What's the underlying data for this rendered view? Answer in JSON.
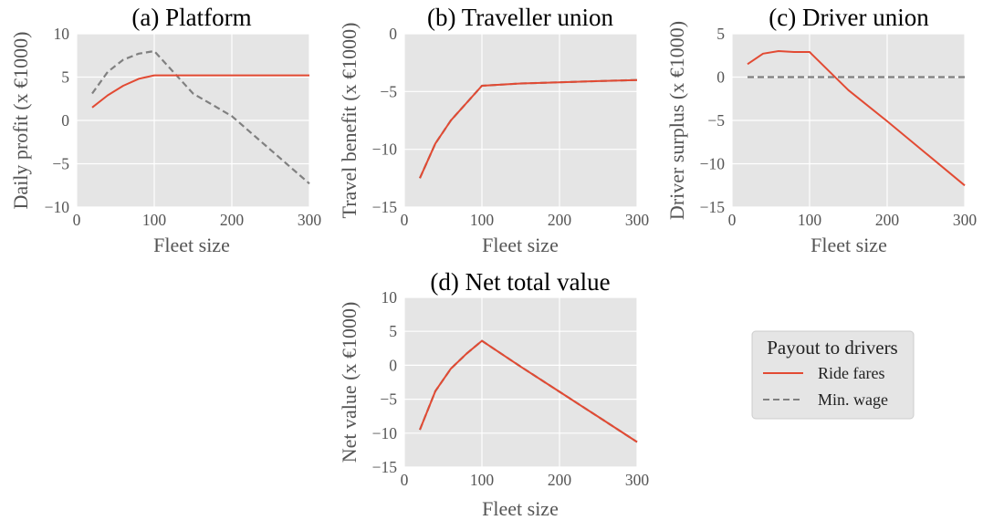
{
  "colors": {
    "ride_fares": "#E24A33",
    "min_wage": "#808080",
    "plot_bg": "#E5E5E5",
    "grid": "#FFFFFF",
    "legend_bg": "#E5E5E5"
  },
  "legend": {
    "title": "Payout to drivers",
    "entries": [
      "Ride fares",
      "Min. wage"
    ],
    "placement": "right of panel (d)"
  },
  "chart_data": [
    {
      "type": "line",
      "title": "(a) Platform",
      "xlabel": "Fleet size",
      "ylabel": "Daily profit (x €1000)",
      "xlim": [
        0,
        300
      ],
      "ylim": [
        -10,
        10
      ],
      "xticks": [
        0,
        100,
        200,
        300
      ],
      "yticks": [
        -10,
        -5,
        0,
        5,
        10
      ],
      "xtick_labels": [
        "0",
        "100",
        "200",
        "300"
      ],
      "ytick_labels": [
        "−10",
        "−5",
        "0",
        "5",
        "10"
      ],
      "grid": true,
      "series": [
        {
          "name": "Ride fares",
          "style": "solid",
          "x": [
            20,
            40,
            60,
            80,
            100,
            120,
            150,
            200,
            250,
            300
          ],
          "y": [
            1.5,
            2.9,
            4.0,
            4.8,
            5.2,
            5.2,
            5.2,
            5.2,
            5.2,
            5.2
          ]
        },
        {
          "name": "Min. wage",
          "style": "dashed",
          "x": [
            20,
            40,
            60,
            80,
            100,
            150,
            200,
            250,
            300
          ],
          "y": [
            3.1,
            5.6,
            7.0,
            7.7,
            8.0,
            3.1,
            0.5,
            -3.4,
            -7.3
          ]
        }
      ]
    },
    {
      "type": "line",
      "title": "(b) Traveller union",
      "xlabel": "Fleet size",
      "ylabel": "Travel benefit (x €1000)",
      "xlim": [
        0,
        300
      ],
      "ylim": [
        -15,
        0
      ],
      "xticks": [
        0,
        100,
        200,
        300
      ],
      "yticks": [
        -15,
        -10,
        -5,
        0
      ],
      "xtick_labels": [
        "0",
        "100",
        "200",
        "300"
      ],
      "ytick_labels": [
        "−15",
        "−10",
        "−5",
        "0"
      ],
      "grid": true,
      "series": [
        {
          "name": "Ride fares",
          "style": "solid",
          "x": [
            20,
            40,
            60,
            80,
            100,
            150,
            200,
            250,
            300
          ],
          "y": [
            -12.5,
            -9.5,
            -7.5,
            -6.0,
            -4.5,
            -4.3,
            -4.2,
            -4.1,
            -4.0
          ]
        },
        {
          "name": "Min. wage",
          "style": "dashed",
          "x": [
            20,
            40,
            60,
            80,
            100,
            150,
            200,
            250,
            300
          ],
          "y": [
            -12.5,
            -9.5,
            -7.5,
            -6.0,
            -4.5,
            -4.3,
            -4.2,
            -4.1,
            -4.0
          ]
        }
      ]
    },
    {
      "type": "line",
      "title": "(c) Driver union",
      "xlabel": "Fleet size",
      "ylabel": "Driver surplus (x €1000)",
      "xlim": [
        0,
        300
      ],
      "ylim": [
        -15,
        5
      ],
      "xticks": [
        0,
        100,
        200,
        300
      ],
      "yticks": [
        -15,
        -10,
        -5,
        0,
        5
      ],
      "xtick_labels": [
        "0",
        "100",
        "200",
        "300"
      ],
      "ytick_labels": [
        "−15",
        "−10",
        "−5",
        "0",
        "5"
      ],
      "grid": true,
      "series": [
        {
          "name": "Ride fares",
          "style": "solid",
          "x": [
            20,
            40,
            60,
            80,
            100,
            150,
            200,
            250,
            300
          ],
          "y": [
            1.5,
            2.7,
            3.0,
            2.9,
            2.9,
            -1.5,
            -5.1,
            -8.8,
            -12.5
          ]
        },
        {
          "name": "Min. wage",
          "style": "dashed",
          "x": [
            20,
            300
          ],
          "y": [
            0,
            0
          ]
        }
      ]
    },
    {
      "type": "line",
      "title": "(d) Net total value",
      "xlabel": "Fleet size",
      "ylabel": "Net value (x €1000)",
      "xlim": [
        0,
        300
      ],
      "ylim": [
        -15,
        10
      ],
      "xticks": [
        0,
        100,
        200,
        300
      ],
      "yticks": [
        -15,
        -10,
        -5,
        0,
        5,
        10
      ],
      "xtick_labels": [
        "0",
        "100",
        "200",
        "300"
      ],
      "ytick_labels": [
        "−15",
        "−10",
        "−5",
        "0",
        "5",
        "10"
      ],
      "grid": true,
      "series": [
        {
          "name": "Ride fares",
          "style": "solid",
          "x": [
            20,
            40,
            60,
            80,
            100,
            150,
            200,
            250,
            300
          ],
          "y": [
            -9.5,
            -3.8,
            -0.5,
            1.7,
            3.6,
            -0.2,
            -3.9,
            -7.6,
            -11.3
          ]
        },
        {
          "name": "Min. wage",
          "style": "dashed",
          "x": [
            20,
            40,
            60,
            80,
            100,
            150,
            200,
            250,
            300
          ],
          "y": [
            -9.5,
            -3.8,
            -0.5,
            1.7,
            3.6,
            -0.2,
            -3.9,
            -7.6,
            -11.3
          ]
        }
      ]
    }
  ]
}
